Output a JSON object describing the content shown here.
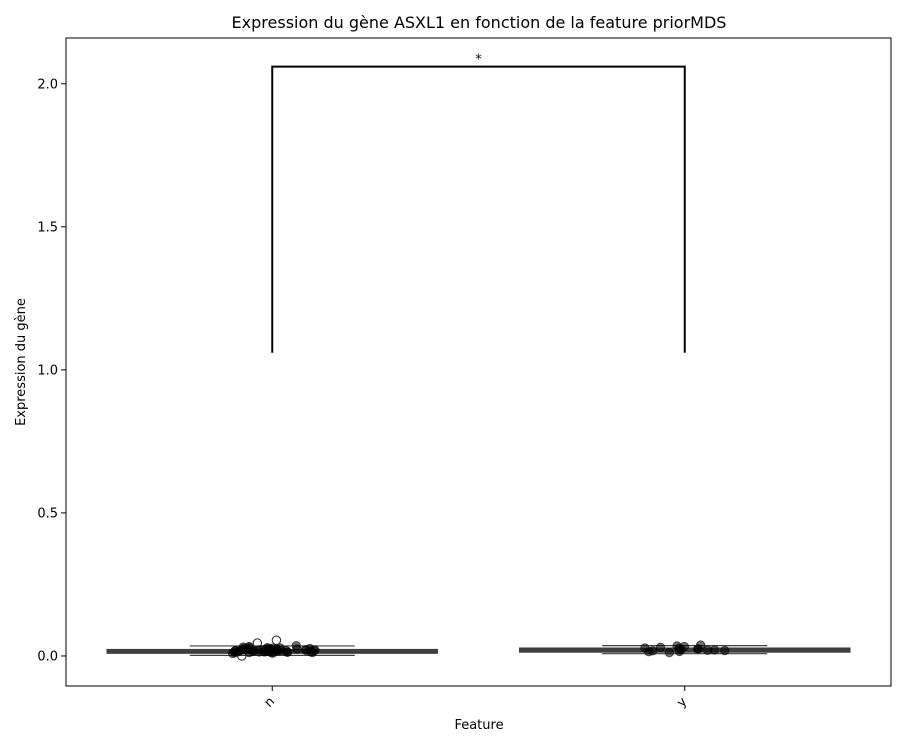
{
  "chart_data": {
    "type": "box",
    "title": "Expression du gène ASXL1 en fonction de la feature priorMDS",
    "xlabel": "Feature",
    "ylabel": "Expression du gène",
    "categories": [
      "n",
      "y"
    ],
    "ylim": [
      -0.105,
      2.16
    ],
    "yticks": [
      0.0,
      0.5,
      1.0,
      1.5,
      2.0
    ],
    "ytick_labels": [
      "0.0",
      "0.5",
      "1.0",
      "1.5",
      "2.0"
    ],
    "boxes": [
      {
        "category": "n",
        "whislo": 0.002,
        "q1": 0.01,
        "median": 0.017,
        "q3": 0.022,
        "whishi": 0.035
      },
      {
        "category": "y",
        "whislo": 0.008,
        "q1": 0.014,
        "median": 0.02,
        "q3": 0.027,
        "whishi": 0.036
      }
    ],
    "points": [
      {
        "category": "n",
        "values": [
          0.012,
          0.02,
          0.015,
          0.03,
          0.025,
          0.01,
          0.018,
          0.022,
          0.028,
          0.014,
          0.016,
          0.024,
          0.019,
          0.011,
          0.027,
          0.033,
          0.013,
          0.021,
          0.017,
          0.023,
          0.026,
          0.009,
          0.015,
          0.02,
          0.018,
          0.029,
          0.012,
          0.022,
          0.016,
          0.025,
          0.014,
          0.019,
          0.031,
          0.02,
          0.017,
          0.023,
          0.055,
          0.045,
          0.0,
          0.036,
          0.014,
          0.021,
          0.018,
          0.026,
          0.012,
          0.02,
          0.015,
          0.024,
          0.019,
          0.022
        ]
      },
      {
        "category": "y",
        "values": [
          0.02,
          0.025,
          0.018,
          0.03,
          0.022,
          0.015,
          0.028,
          0.035,
          0.038,
          0.024,
          0.019,
          0.012,
          0.027,
          0.033,
          0.016,
          0.021
        ]
      }
    ],
    "annotations": [
      {
        "text": "*",
        "between": [
          "n",
          "y"
        ],
        "y": 2.06,
        "drop_to": 1.06
      }
    ],
    "grid": false
  }
}
